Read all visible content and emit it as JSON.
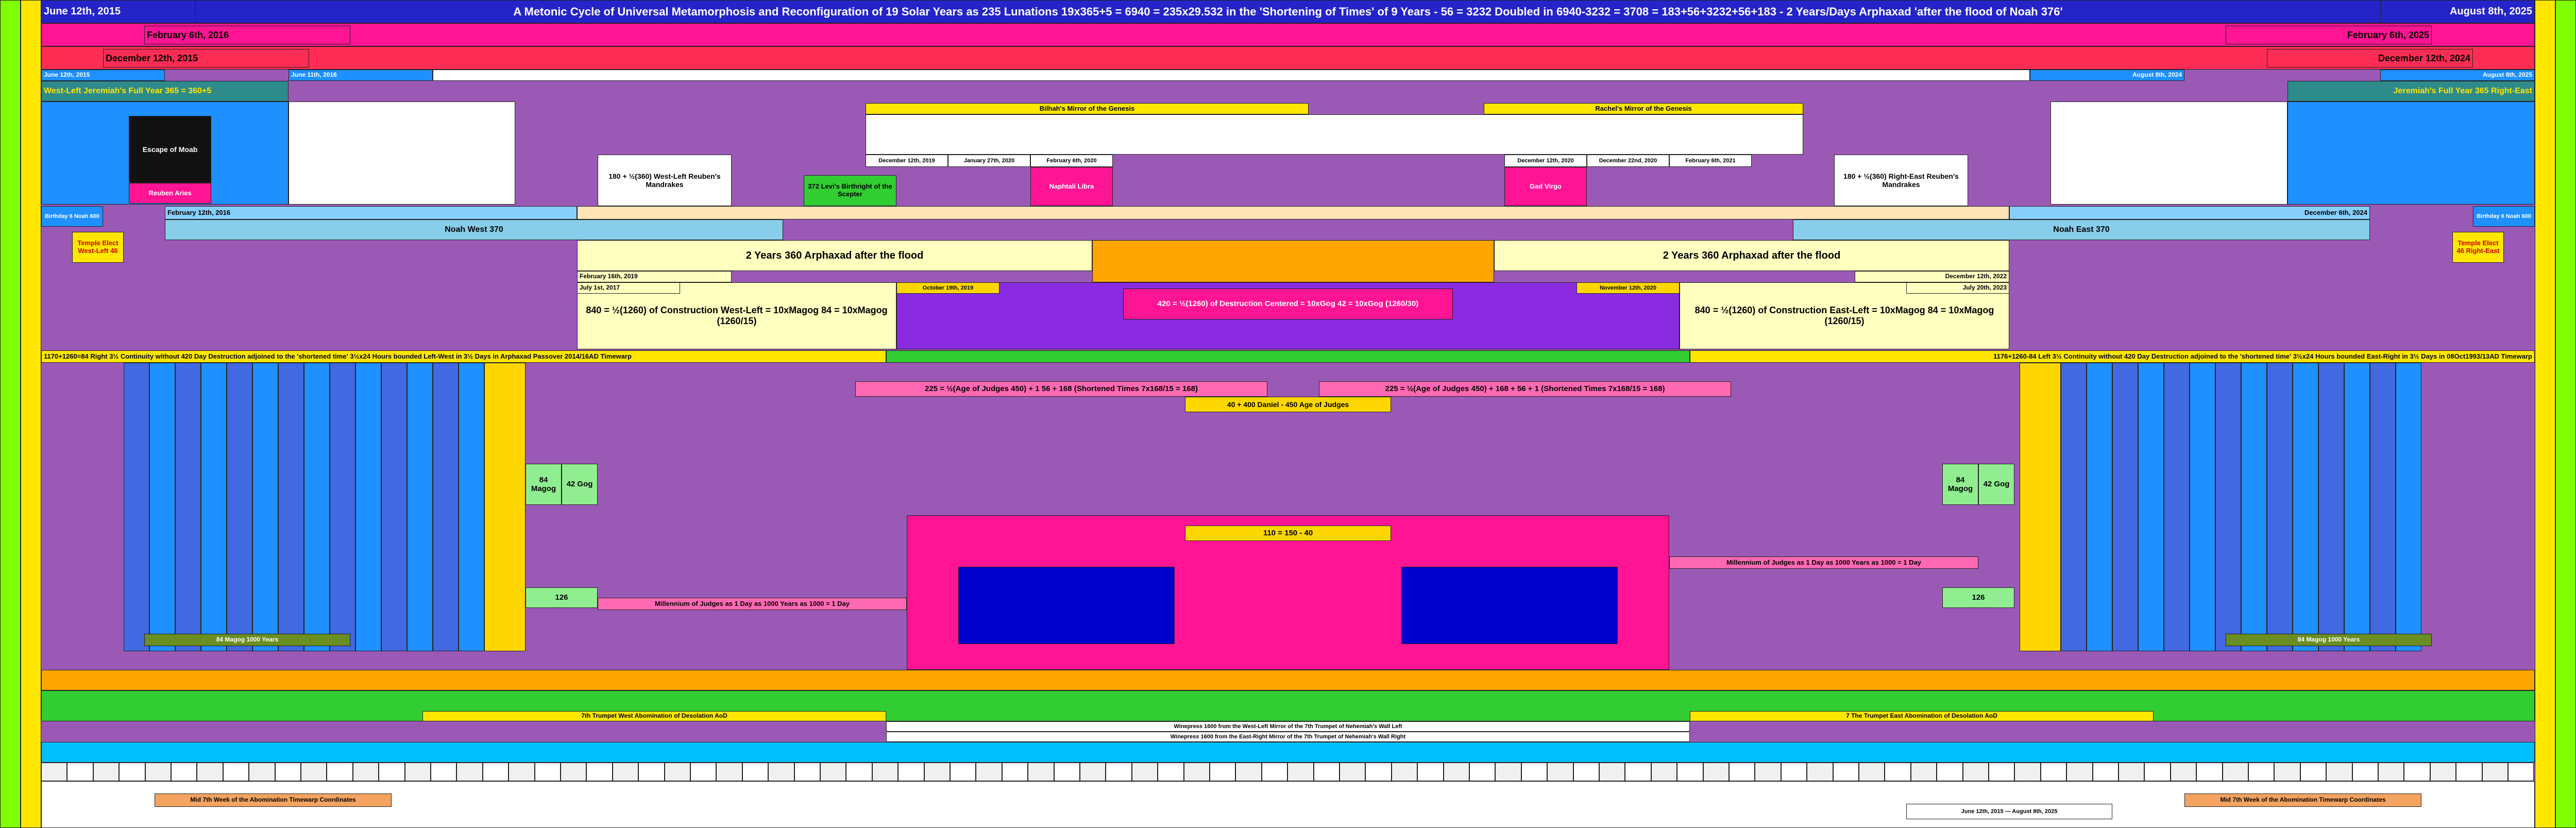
{
  "header": {
    "start_date": "June 12th, 2015",
    "title": "A Metonic Cycle of Universal Metamorphosis and Reconfiguration  of 19 Solar Years as 235 Lunations 19x365+5 = 6940 = 235x29.532 in the 'Shortening of Times' of 9 Years - 56 = 3232 Doubled in 6940-3232 = 3708 = 183+56+3232+56+183 - 2 Years/Days Arphaxad 'after the flood of Noah 376'",
    "end_date": "August 8th, 2025"
  },
  "rows": {
    "feb_left": "February 6th, 2016",
    "feb_right": "February 6th, 2025",
    "dec_left": "December 12th, 2015",
    "dec_right": "December 12th, 2024",
    "june_left": "June 12th, 2015",
    "june_mid": "June 11th, 2016",
    "aug_right": "August 8th, 2025",
    "aug_mid": "August 8th, 2024"
  },
  "labels": {
    "west_year": "West-Left Jeremiah's Full Year 365 = 360+5",
    "east_year": "Jeremiah's Full Year 365 Right-East",
    "bilhah": "Bilhah's Mirror of the Genesis",
    "rachel": "Rachel's Mirror of the Genesis",
    "escape_moab": "Escape of Moab",
    "reuben_west": "Reuben Aries",
    "west_mandrakes": "180 + ½(360) West-Left Reuben's Mandrakes",
    "east_mandrakes": "180 + ½(360) Right-East Reuben's Mandrakes",
    "levi": "372 Levi's Birthright of the Scepter",
    "dec_2019": "December 12th, 2019",
    "jan_2020": "January 27th, 2020",
    "feb_2020": "February 6th, 2020",
    "dec_2020": "December 12th, 2020",
    "dec22_2020": "December 22nd, 2020",
    "feb_2021": "February 6th, 2021",
    "naphtali": "Naphtali Libra",
    "gad": "Gad Virgo",
    "birthday_left": "Birthday 6 Noah 600",
    "birthday_right": "Birthday 6 Noah 600",
    "feb12_2016": "February 12th, 2016",
    "dec6_2024": "December 6th, 2024",
    "noah_west": "Noah West 370",
    "noah_east": "Noah East 370",
    "temple_west": "Temple Elect West-Left 46",
    "temple_east": "Temple Elect 46 Right-East",
    "arphaxad_left": "2 Years 360 Arphaxad after the flood",
    "arphaxad_right": "2 Years 360 Arphaxad after the flood",
    "feb_2019": "February 16th, 2019",
    "dec_2022": "December 12th, 2022",
    "july_2017": "July 1st, 2017",
    "july_2023": "July 20th, 2023",
    "oct_2019": "October 19th, 2019",
    "nov_2020": "November 12th, 2020",
    "construction_west": "840 = ½(1260) of Construction West-Left = 10xMagog 84 = 10xMagog (1260/15)",
    "construction_east": "840 = ½(1260) of Construction East-Left = 10xMagog 84 = 10xMagog (1260/15)",
    "destruction": "420 = ½(1260) of Destruction Centered = 10xGog 42 = 10xGog (1260/30)",
    "continuity_left": "1170+1260=84 Right 3½ Continuity without 420 Day Destruction adjoined to the 'shortened time' 3½x24 Hours bounded Left-West in 3½ Days in Arphaxad Passover 2014/16AD Timewarp",
    "continuity_right": "1176+1260-84 Left 3½ Continuity without 420 Day Destruction adjoined to the 'shortened time' 3½x24 Hours bounded East-Right in 3½ Days in 08Oct1993/13AD Timewarp",
    "judges_left": "225 = ½(Age of Judges 450) + 1 56 + 168 (Shortened Times 7x168/15 = 168)",
    "judges_right": "225 = ½(Age of Judges 450) + 168 + 56 + 1 (Shortened Times 7x168/15 = 168)",
    "judges_center": "40 + 400 Daniel - 450 Age of Judges",
    "magog_left": "84 Magog",
    "gog_left": "42 Gog",
    "magog_right": "84 Magog",
    "gog_right": "42 Gog",
    "millennium_left": "Millennium of Judges as 1 Day as 1000 Years as 1000 = 1 Day",
    "millennium_right": "Millennium of Judges as 1 Day as 1000 Years as 1000 = 1 Day",
    "num_126_left": "126",
    "num_126_right": "126",
    "num_110": "110 = 150 - 40",
    "trumpet_west": "7th Trumpet West Abomination of Desolation AoD",
    "trumpet_east": "7 The Trumpet East Abomination of Desolation AoD",
    "winepress_west": "Winepress 1600 from the West-Left Mirror of the 7th Trumpet of Nehemiah's Wall Left",
    "winepress_east": "Winepress 1600 from the East-Right Mirror of the 7th Trumpet of Nehemiah's Wall Right",
    "magog_1000_left": "84 Magog 1000 Years",
    "magog_1000_right": "84 Magog 1000 Years",
    "footer_left": "Mid 7th Week of the Abomination Timewarp Coordinates",
    "footer_right": "Mid 7th Week of the Abomination Timewarp Coordinates",
    "footer_center": "June 12th, 2015 — August 8th, 2025"
  }
}
